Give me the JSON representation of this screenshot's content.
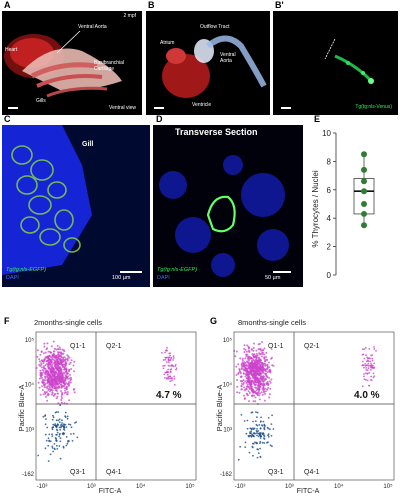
{
  "panel_a": {
    "letter": "A",
    "stage": "2 mpf",
    "heart": "Heart",
    "ventral_aorta": "Ventral Aorta",
    "basibranchial": "Basibranchial Cartilage",
    "gills": "Gills",
    "view": "Ventral view"
  },
  "panel_b": {
    "letter": "B",
    "outflow_tract": "Outflow Tract",
    "atrium": "Atrium",
    "ventral_aorta": "Ventral Aorta",
    "ventricle": "Ventricle"
  },
  "panel_b2": {
    "letter": "B'",
    "transgene": "Tg(tg:nls-Venus)"
  },
  "panel_c": {
    "letter": "C",
    "tissue": "Gill",
    "transgene": "Tg(tg:nls-EGFP)",
    "stain": "DAPI",
    "scale": "100 µm"
  },
  "panel_d": {
    "letter": "D",
    "title": "Transverse Section",
    "transgene": "Tg(tg:nls-EGFP)",
    "stain": "DAPI",
    "scale": "50 µm"
  },
  "panel_f": {
    "letter": "F",
    "title": "2months-single cells",
    "ylabel": "Pacific Blue-A",
    "xlabel": "FITC-A",
    "quadrants": [
      "Q1-1",
      "Q2-1",
      "Q3-1",
      "Q4-1"
    ],
    "percent": "4.7 %"
  },
  "panel_g": {
    "letter": "G",
    "title": "8months-single cells",
    "ylabel": "Pacific Blue-A",
    "xlabel": "FITC-A",
    "quadrants": [
      "Q1-1",
      "Q2-1",
      "Q3-1",
      "Q4-1"
    ],
    "percent": "4.0 %"
  },
  "colors": {
    "egfp_green": "#33cc33",
    "dapi_blue": "#1a2aff",
    "box_green": "#2e7d32",
    "flow_magenta": "#cc44cc",
    "flow_blue": "#1a4e8a"
  },
  "chart_data": [
    {
      "type": "box",
      "panel": "E",
      "title": "",
      "xlabel": "",
      "ylabel": "% Thyrocytes / Nuclei",
      "ylim": [
        0,
        10
      ],
      "yticks": [
        "0",
        "2",
        "4",
        "6",
        "8",
        "10"
      ],
      "points": [
        3.5,
        4.3,
        5.0,
        5.9,
        6.6,
        7.4,
        8.5
      ],
      "box": {
        "min": 3.5,
        "q1": 4.3,
        "median": 5.9,
        "q3": 6.8,
        "max": 8.5
      },
      "grid": false
    },
    {
      "type": "scatter",
      "panel": "F",
      "title": "2months-single cells",
      "xlabel": "FITC-A",
      "ylabel": "Pacific Blue-A",
      "xticks": [
        "-10³",
        "10³",
        "10⁴",
        "10⁵"
      ],
      "yticks": [
        "-162",
        "10³",
        "10⁴",
        "10⁵"
      ],
      "quadrant_percent": {
        "Q2-1": 4.7
      }
    },
    {
      "type": "scatter",
      "panel": "G",
      "title": "8months-single cells",
      "xlabel": "FITC-A",
      "ylabel": "Pacific Blue-A",
      "xticks": [
        "-10³",
        "10³",
        "10⁴",
        "10⁵"
      ],
      "yticks": [
        "-162",
        "10³",
        "10⁴",
        "10⁵"
      ],
      "quadrant_percent": {
        "Q2-1": 4.0
      }
    }
  ]
}
